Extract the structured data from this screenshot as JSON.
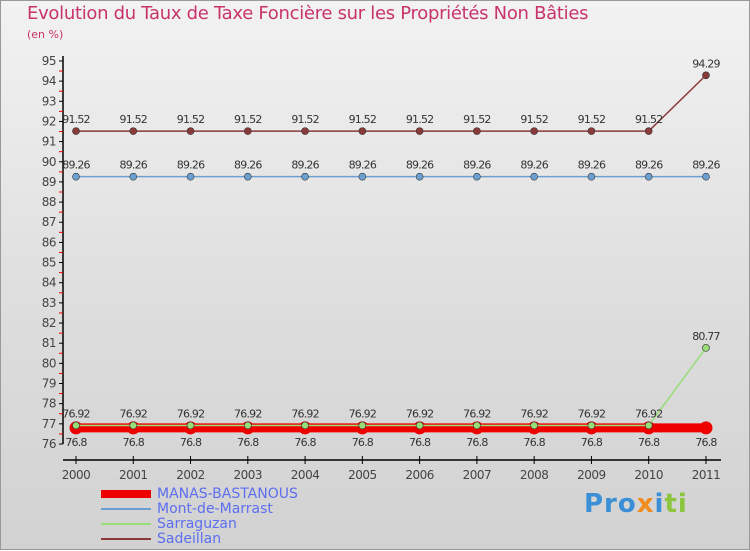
{
  "chart_data": {
    "type": "line",
    "title": "Evolution du Taux de Taxe Foncière sur les Propriétés Non Bâties",
    "ylabel": "(en %)",
    "xlabel": "",
    "ylim": [
      76,
      95
    ],
    "x": [
      "2000",
      "2001",
      "2002",
      "2003",
      "2004",
      "2005",
      "2006",
      "2007",
      "2008",
      "2009",
      "2010",
      "2011"
    ],
    "yticks": [
      "76",
      "77",
      "78",
      "79",
      "80",
      "81",
      "82",
      "83",
      "84",
      "85",
      "86",
      "87",
      "88",
      "89",
      "90",
      "91",
      "92",
      "93",
      "94",
      "95"
    ],
    "series": [
      {
        "name": "MANAS-BASTANOUS",
        "color": "#ee0000",
        "values": [
          76.8,
          76.8,
          76.8,
          76.8,
          76.8,
          76.8,
          76.8,
          76.8,
          76.8,
          76.8,
          76.8,
          76.8
        ],
        "labels": [
          "76.8",
          "76.8",
          "76.8",
          "76.8",
          "76.8",
          "76.8",
          "76.8",
          "76.8",
          "76.8",
          "76.8",
          "76.8",
          "76.8"
        ]
      },
      {
        "name": "Mont-de-Marrast",
        "color": "#6a9fd0",
        "values": [
          89.26,
          89.26,
          89.26,
          89.26,
          89.26,
          89.26,
          89.26,
          89.26,
          89.26,
          89.26,
          89.26,
          89.26
        ],
        "labels": [
          "89.26",
          "89.26",
          "89.26",
          "89.26",
          "89.26",
          "89.26",
          "89.26",
          "89.26",
          "89.26",
          "89.26",
          "89.26",
          "89.26"
        ]
      },
      {
        "name": "Sarraguzan",
        "color": "#99dd77",
        "values": [
          76.92,
          76.92,
          76.92,
          76.92,
          76.92,
          76.92,
          76.92,
          76.92,
          76.92,
          76.92,
          76.92,
          80.77
        ],
        "labels": [
          "76.92",
          "76.92",
          "76.92",
          "76.92",
          "76.92",
          "76.92",
          "76.92",
          "76.92",
          "76.92",
          "76.92",
          "76.92",
          "80.77"
        ]
      },
      {
        "name": "Sadeillan",
        "color": "#8b3a3a",
        "values": [
          91.52,
          91.52,
          91.52,
          91.52,
          91.52,
          91.52,
          91.52,
          91.52,
          91.52,
          91.52,
          91.52,
          94.29
        ],
        "labels": [
          "91.52",
          "91.52",
          "91.52",
          "91.52",
          "91.52",
          "91.52",
          "91.52",
          "91.52",
          "91.52",
          "91.52",
          "91.52",
          "94.29"
        ]
      }
    ],
    "legend": "bottom-left"
  },
  "logo": "Proxiti"
}
